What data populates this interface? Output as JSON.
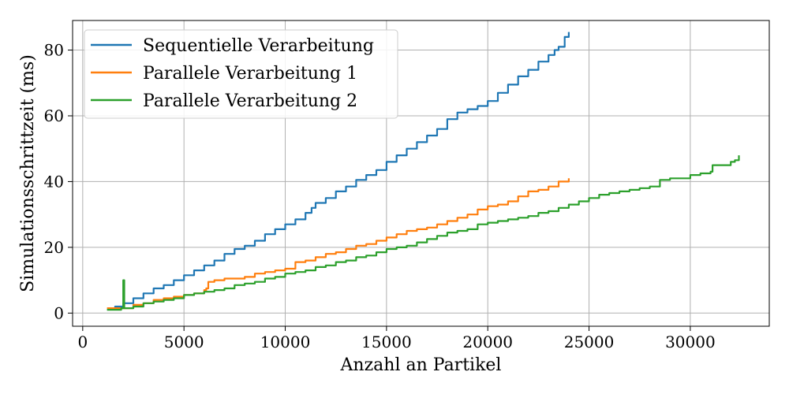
{
  "chart_data": {
    "type": "line",
    "xlabel": "Anzahl an Partikel",
    "ylabel": "Simulationsschrittzeit (ms)",
    "xlim": [
      -500,
      33900
    ],
    "ylim": [
      -4,
      89
    ],
    "xticks": [
      0,
      5000,
      10000,
      15000,
      20000,
      25000,
      30000
    ],
    "yticks": [
      0,
      20,
      40,
      60,
      80
    ],
    "grid": true,
    "legend_position": "top-left",
    "series": [
      {
        "name": "Sequentielle Verarbeitung",
        "color": "#1f77b4",
        "x": [
          1300,
          1600,
          2000,
          2500,
          3000,
          3500,
          4000,
          4500,
          5000,
          5500,
          6000,
          6500,
          7000,
          7500,
          8000,
          8500,
          9000,
          9500,
          10000,
          10500,
          11000,
          11300,
          11500,
          12000,
          12500,
          13000,
          13500,
          14000,
          14500,
          15000,
          15500,
          16000,
          16500,
          17000,
          17500,
          18000,
          18500,
          19000,
          19500,
          20000,
          20500,
          21000,
          21500,
          22000,
          22500,
          23000,
          23300,
          23500,
          23800,
          24000
        ],
        "y": [
          1.5,
          2,
          3,
          4.5,
          6,
          7.5,
          8.5,
          10,
          11.5,
          13,
          14.5,
          16,
          18,
          19.5,
          20.5,
          22,
          24,
          25.5,
          27,
          28.5,
          30.5,
          32,
          33.5,
          35,
          37,
          38.5,
          40.5,
          42,
          43.5,
          46,
          48,
          50,
          52,
          54,
          56,
          59,
          61,
          62,
          63,
          64.5,
          67,
          69.5,
          72,
          74,
          76.5,
          78.5,
          80,
          81,
          84,
          85.5
        ]
      },
      {
        "name": "Parallele Verarbeitung 1",
        "color": "#ff7f0e",
        "x": [
          1200,
          1800,
          2500,
          3000,
          3500,
          4000,
          4500,
          5000,
          5500,
          6000,
          6100,
          6200,
          6500,
          7000,
          7500,
          8000,
          8500,
          9000,
          9500,
          10000,
          10500,
          11000,
          11500,
          12000,
          12500,
          13000,
          13500,
          14000,
          14500,
          15000,
          15500,
          16000,
          16500,
          17000,
          17500,
          18000,
          18500,
          19000,
          19500,
          20000,
          20500,
          21000,
          21500,
          22000,
          22500,
          23000,
          23500,
          24000
        ],
        "y": [
          1.5,
          1.5,
          2.5,
          3,
          4,
          4.5,
          5,
          5.5,
          6,
          7,
          7.5,
          9.5,
          10,
          10.5,
          10.5,
          11,
          12,
          12.5,
          13,
          13.5,
          15.5,
          16,
          17,
          18,
          18.5,
          19.5,
          20.5,
          21,
          22,
          23,
          24,
          25,
          25.5,
          26,
          27,
          28,
          29,
          30,
          31.5,
          32.5,
          33,
          34,
          35.5,
          37,
          37.5,
          38.5,
          40,
          41
        ]
      },
      {
        "name": "Parallele Verarbeitung 2",
        "color": "#2ca02c",
        "x": [
          1200,
          1900,
          2000,
          2050,
          2100,
          2500,
          3000,
          3500,
          4000,
          4500,
          5000,
          5500,
          6000,
          6500,
          7000,
          7500,
          8000,
          8500,
          9000,
          9500,
          10000,
          10500,
          11000,
          11500,
          12000,
          12500,
          13000,
          13500,
          14000,
          14500,
          15000,
          15500,
          16000,
          16500,
          17000,
          17500,
          18000,
          18500,
          19000,
          19500,
          20000,
          20500,
          21000,
          21500,
          22000,
          22500,
          23000,
          23500,
          24000,
          24500,
          25000,
          25500,
          26000,
          26500,
          27000,
          27500,
          28000,
          28500,
          29000,
          29500,
          30000,
          30500,
          31000,
          31100,
          31500,
          32000,
          32200,
          32400
        ],
        "y": [
          1,
          1.5,
          10,
          1.5,
          1.5,
          2,
          3,
          3.5,
          4,
          4.5,
          5.5,
          6,
          6.5,
          7,
          7.5,
          8.5,
          9,
          9.5,
          10.5,
          11,
          12,
          12.5,
          13,
          14,
          14.5,
          15.5,
          16,
          17,
          17.5,
          18.5,
          19.5,
          20,
          20.5,
          21.5,
          22.5,
          23.5,
          24.5,
          25,
          25.5,
          27,
          27.5,
          28,
          28.5,
          29,
          29.5,
          30.5,
          31,
          32,
          33,
          34,
          35,
          36,
          36.5,
          37,
          37.5,
          38,
          38.5,
          40.5,
          41,
          41,
          42,
          42.5,
          43,
          45,
          45,
          46,
          46.5,
          48
        ]
      }
    ]
  }
}
